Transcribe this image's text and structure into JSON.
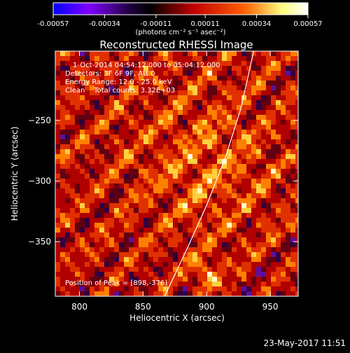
{
  "chart_data": {
    "type": "heatmap",
    "title": "Reconstructed RHESSI Image",
    "xlabel": "Heliocentric X (arcsec)",
    "ylabel": "Heliocentric Y (arcsec)",
    "xlim": [
      781,
      972
    ],
    "ylim": [
      -395,
      -193
    ],
    "x_ticks": [
      800,
      850,
      900,
      950
    ],
    "y_ticks": [
      -250,
      -300,
      -350
    ],
    "colorbar": {
      "range": [
        -0.00057,
        0.00057
      ],
      "tick_values": [
        -0.00057,
        -0.00034,
        -0.00011,
        0.00011,
        0.00034,
        0.00057
      ],
      "tick_labels": [
        "-0.00057",
        "-0.00034",
        "-0.00011",
        "0.00011",
        "0.00034",
        "0.00057"
      ],
      "unit": "(photons cm⁻² s⁻¹ asec⁻²)",
      "colormap": [
        "#0000ff",
        "#8000ff",
        "#200040",
        "#000000",
        "#c00000",
        "#ff6000",
        "#ffff80",
        "#ffffff"
      ]
    },
    "annotations": [
      "1-Oct-2014 04:54:12.000 to 05:04:12.000",
      "Detectors: 3F 6F 9F, Att 0",
      "Energy Range: 12.0 - 25.0 keV",
      "Clean    Total counts: 3.32E+03"
    ],
    "peak_label": "Position of Peak = [898,-376]",
    "peak": [
      898,
      -376
    ],
    "limb_curve": [
      [
        867,
        -395
      ],
      [
        885,
        -355
      ],
      [
        900,
        -320
      ],
      [
        915,
        -280
      ],
      [
        927,
        -240
      ],
      [
        937,
        -193
      ]
    ],
    "grid": false,
    "legend": "none"
  },
  "footer": {
    "timestamp": "23-May-2017 11:51"
  }
}
